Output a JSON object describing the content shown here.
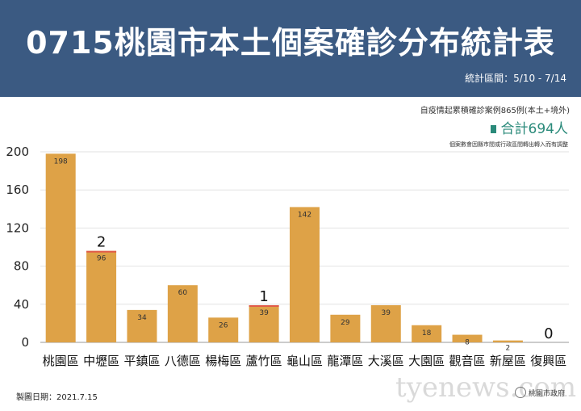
{
  "header": {
    "title": "0715桃園市本土個案確診分布統計表",
    "period": "統計區間：5/10 - 7/14",
    "background_color": "#3b5a82"
  },
  "notes": {
    "cumulative": "自疫情起累積確診案例865例(本土+境外)",
    "total": "合計694人",
    "adjust": "個案數會因縣市間或行政區間轉出轉入而有調整"
  },
  "footer": {
    "made_date": "製圖日期：2021.7.15",
    "logo_text": "桃園市政府"
  },
  "watermark": "tyenews.com",
  "chart_data": {
    "type": "bar",
    "categories": [
      "桃園區",
      "中壢區",
      "平鎮區",
      "八德區",
      "楊梅區",
      "蘆竹區",
      "龜山區",
      "龍潭區",
      "大溪區",
      "大園區",
      "觀音區",
      "新屋區",
      "復興區"
    ],
    "values": [
      198,
      96,
      34,
      60,
      26,
      39,
      142,
      29,
      39,
      18,
      8,
      2,
      0
    ],
    "value_labels": [
      "198",
      "96",
      "34",
      "60",
      "26",
      "39",
      "142",
      "29",
      "39",
      "18",
      "8",
      "2",
      ""
    ],
    "annotations": [
      {
        "category": "中壢區",
        "text": "2"
      },
      {
        "category": "蘆竹區",
        "text": "1"
      },
      {
        "category": "復興區",
        "text": "0"
      }
    ],
    "highlight_increment": {
      "中壢區": 2,
      "蘆竹區": 1
    },
    "yticks": [
      "0",
      "40",
      "80",
      "120",
      "160",
      "200"
    ],
    "ylim": [
      0,
      200
    ],
    "grid": true,
    "bar_color": "#dea247",
    "highlight_color": "#e05a4a"
  }
}
